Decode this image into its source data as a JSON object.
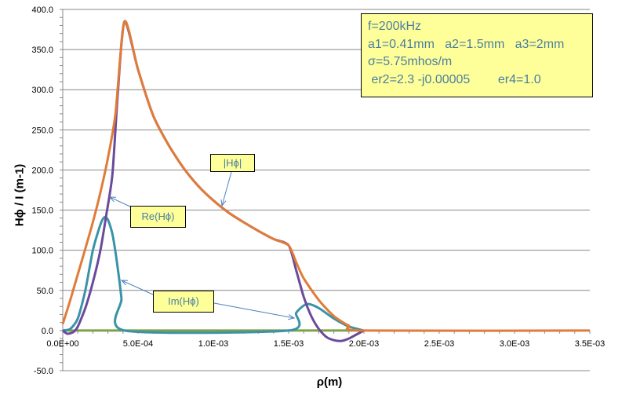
{
  "chart_data": {
    "type": "line",
    "title": "",
    "xlabel": "ρ(m)",
    "ylabel": "Hϕ / I   (m-1)",
    "xlim": [
      0,
      0.0035
    ],
    "ylim": [
      -50,
      400
    ],
    "x_ticks": [
      "0.0E+00",
      "5.0E-04",
      "1.0E-03",
      "1.5E-03",
      "2.0E-03",
      "2.5E-03",
      "3.0E-03",
      "3.5E-03"
    ],
    "x_tick_values": [
      0,
      0.0005,
      0.001,
      0.0015,
      0.002,
      0.0025,
      0.003,
      0.0035
    ],
    "y_ticks": [
      "400.0",
      "350.0",
      "300.0",
      "250.0",
      "200.0",
      "150.0",
      "100.0",
      "50.0",
      "0.0",
      "-50.0"
    ],
    "y_tick_values": [
      400,
      350,
      300,
      250,
      200,
      150,
      100,
      50,
      0,
      -50
    ],
    "grid": "horizontal",
    "series": [
      {
        "name": "|Hϕ|",
        "color": "#e07b39",
        "x": [
          0,
          5e-05,
          0.0001,
          0.00015,
          0.0002,
          0.00025,
          0.0003,
          0.00035,
          0.00041,
          0.0005,
          0.0006,
          0.0007,
          0.0008,
          0.0009,
          0.001,
          0.0011,
          0.0012,
          0.0013,
          0.0014,
          0.0015,
          0.00155,
          0.0016,
          0.0017,
          0.0018,
          0.0019,
          0.002,
          0.0035
        ],
        "y": [
          8,
          38,
          70,
          102,
          135,
          172,
          215,
          270,
          385,
          325,
          268,
          232,
          203,
          180,
          162,
          147,
          135,
          124,
          114,
          106,
          85,
          65,
          38,
          18,
          6,
          0,
          0
        ]
      },
      {
        "name": "Re(Hϕ)",
        "color": "#6a4a9c",
        "x": [
          0,
          3e-05,
          7e-05,
          0.0001,
          0.00015,
          0.0002,
          0.00025,
          0.00029,
          0.00033,
          0.000365,
          0.00041,
          0.0005,
          0.0006,
          0.0007,
          0.0008,
          0.0009,
          0.001,
          0.0011,
          0.0012,
          0.0013,
          0.0014,
          0.0015,
          0.00155,
          0.0016,
          0.00165,
          0.0017,
          0.00175,
          0.0018,
          0.00185,
          0.0019,
          0.00195,
          0.002
        ],
        "y": [
          0,
          -4,
          -2,
          5,
          28,
          60,
          100,
          145,
          195,
          294,
          385,
          325,
          268,
          232,
          203,
          180,
          162,
          147,
          135,
          124,
          114,
          106,
          75,
          42,
          18,
          2,
          -8,
          -12,
          -13,
          -10,
          -5,
          0
        ]
      },
      {
        "name": "Im(Hϕ)",
        "color": "#3a93a8",
        "x": [
          0,
          5e-05,
          0.0001,
          0.00015,
          0.0002,
          0.00025,
          0.000276,
          0.0003,
          0.00033,
          0.00036,
          0.00039,
          0.00041,
          0.0015,
          0.00155,
          0.00162,
          0.0017,
          0.0018,
          0.0019,
          0.002
        ],
        "y": [
          0,
          2,
          15,
          50,
          100,
          132,
          141,
          138,
          120,
          85,
          40,
          0,
          0,
          22,
          33,
          28,
          15,
          5,
          0
        ]
      },
      {
        "name": "",
        "color": "#7ea04a",
        "x": [
          0,
          0.002
        ],
        "y": [
          0,
          0
        ]
      }
    ],
    "annotations": [
      {
        "text": "|Hϕ|",
        "points_to": "|Hϕ|"
      },
      {
        "text": "Re(Hϕ)",
        "points_to": "Re(Hϕ)"
      },
      {
        "text": "Im(Hϕ)",
        "points_to": "Im(Hϕ)"
      }
    ],
    "parameters_box": [
      "f=200kHz",
      "a1=0.41mm   a2=1.5mm   a3=2mm",
      "σ=5.75mhos/m",
      " er2=2.3 -j0.00005        er4=1.0"
    ]
  }
}
